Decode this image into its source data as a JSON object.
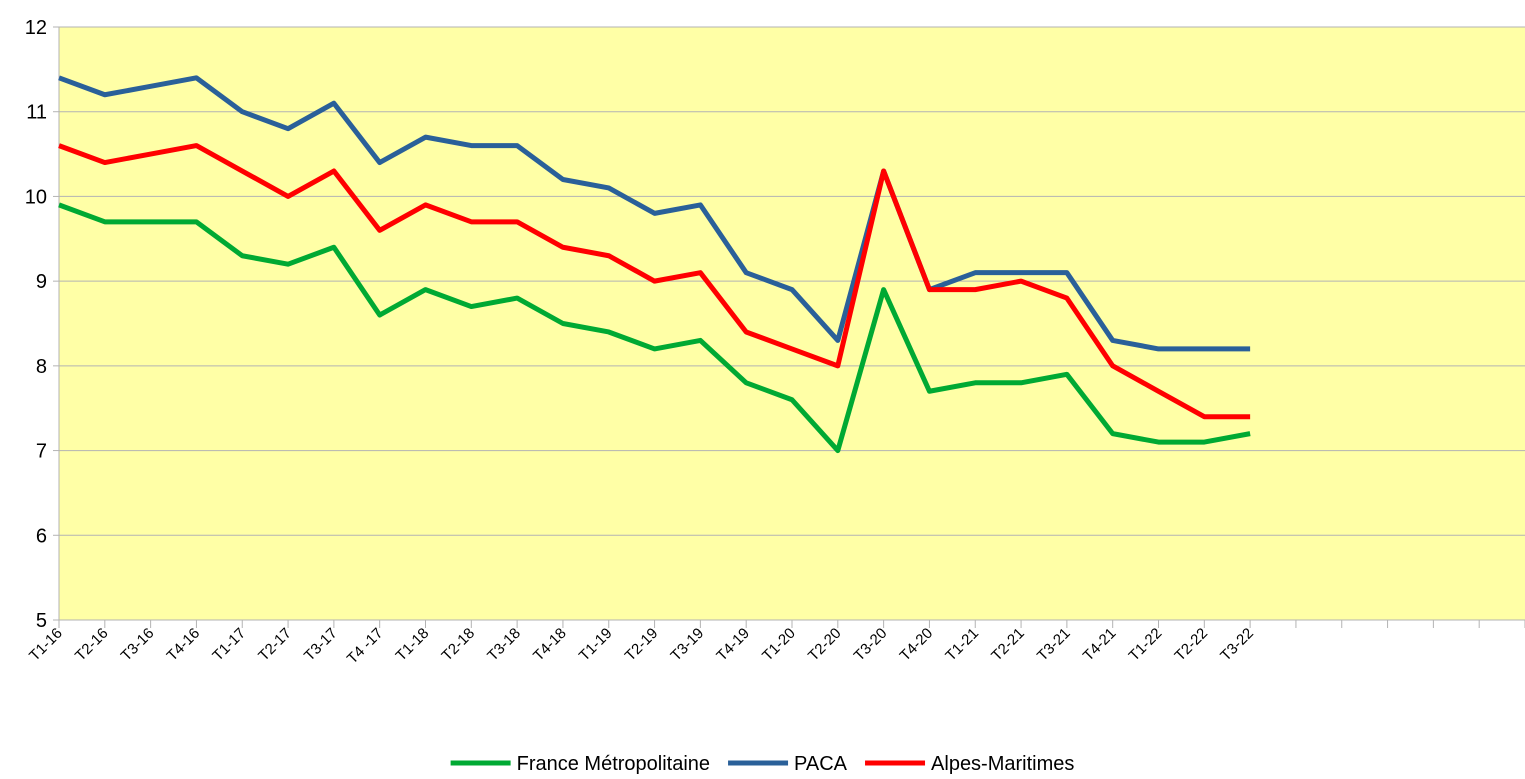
{
  "chart_data": {
    "type": "line",
    "categories": [
      "T1-16",
      "T2-16",
      "T3-16",
      "T4-16",
      "T1-17",
      "T2-17",
      "T3-17",
      "T4 -17",
      "T1-18",
      "T2-18",
      "T3-18",
      "T4-18",
      "T1-19",
      "T2-19",
      "T3-19",
      "T4-19",
      "T1-20",
      "T2-20",
      "T3-20",
      "T4-20",
      "T1-21",
      "T2-21",
      "T3-21",
      "T4-21",
      "T1-22",
      "T2-22",
      "T3-22",
      null,
      null,
      null,
      null,
      null,
      null
    ],
    "series": [
      {
        "name": "France Métropolitaine",
        "color": "#00a933",
        "values": [
          9.9,
          9.7,
          9.7,
          9.7,
          9.3,
          9.2,
          9.4,
          8.6,
          8.9,
          8.7,
          8.8,
          8.5,
          8.4,
          8.2,
          8.3,
          7.8,
          7.6,
          7.0,
          8.9,
          7.7,
          7.8,
          7.8,
          7.9,
          7.2,
          7.1,
          7.1,
          7.2,
          null,
          null,
          null,
          null,
          null,
          null
        ]
      },
      {
        "name": "PACA",
        "color": "#2a6099",
        "values": [
          11.4,
          11.2,
          11.3,
          11.4,
          11.0,
          10.8,
          11.1,
          10.4,
          10.7,
          10.6,
          10.6,
          10.2,
          10.1,
          9.8,
          9.9,
          9.1,
          8.9,
          8.3,
          10.3,
          8.9,
          9.1,
          9.1,
          9.1,
          8.3,
          8.2,
          8.2,
          8.2,
          null,
          null,
          null,
          null,
          null,
          null
        ]
      },
      {
        "name": "Alpes-Maritimes",
        "color": "#ff0000",
        "values": [
          10.6,
          10.4,
          10.5,
          10.6,
          10.3,
          10.0,
          10.3,
          9.6,
          9.9,
          9.7,
          9.7,
          9.4,
          9.3,
          9.0,
          9.1,
          8.4,
          8.2,
          8.0,
          10.3,
          8.9,
          8.9,
          9.0,
          8.8,
          8.0,
          7.7,
          7.4,
          7.4,
          null,
          null,
          null,
          null,
          null,
          null
        ]
      }
    ],
    "ylim": [
      5,
      12
    ],
    "yticks": [
      5,
      6,
      7,
      8,
      9,
      10,
      11,
      12
    ],
    "grid": true,
    "plot_background": "#ffffa6",
    "legend_position": "bottom"
  }
}
